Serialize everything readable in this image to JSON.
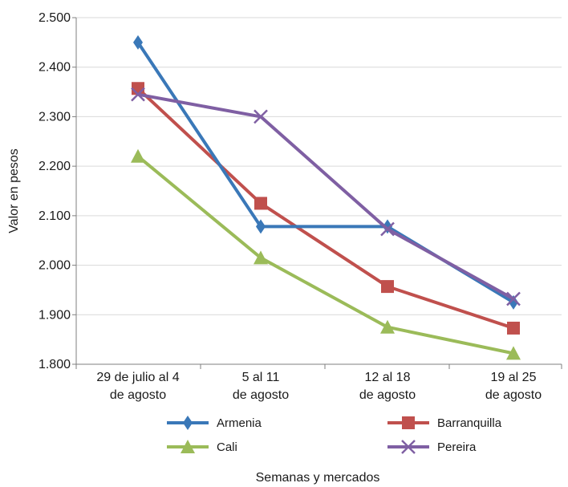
{
  "chart_data": {
    "type": "line",
    "xlabel": "Semanas y mercados",
    "ylabel": "Valor en pesos",
    "ylim": [
      1800,
      2500
    ],
    "yticks": [
      1800,
      1900,
      2000,
      2100,
      2200,
      2300,
      2400,
      2500
    ],
    "ytick_labels": [
      "1.800",
      "1.900",
      "2.000",
      "2.100",
      "2.200",
      "2.300",
      "2.400",
      "2.500"
    ],
    "categories": [
      [
        "29 de julio al 4",
        "de agosto"
      ],
      [
        "5 al 11",
        "de agosto"
      ],
      [
        "12 al 18",
        "de agosto"
      ],
      [
        "19 al 25",
        "de agosto"
      ]
    ],
    "grid": "horizontal",
    "legend_position": "bottom",
    "series": [
      {
        "name": "Armenia",
        "color": "#3a78b8",
        "marker": "diamond",
        "values": [
          2450,
          2078,
          2078,
          1925
        ]
      },
      {
        "name": "Barranquilla",
        "color": "#c0504d",
        "marker": "square",
        "values": [
          2357,
          2125,
          1957,
          1873
        ]
      },
      {
        "name": "Cali",
        "color": "#9bbb59",
        "marker": "triangle",
        "values": [
          2220,
          2015,
          1875,
          1822
        ]
      },
      {
        "name": "Pereira",
        "color": "#7f5fa3",
        "marker": "x",
        "values": [
          2345,
          2300,
          2073,
          1932
        ]
      }
    ]
  }
}
